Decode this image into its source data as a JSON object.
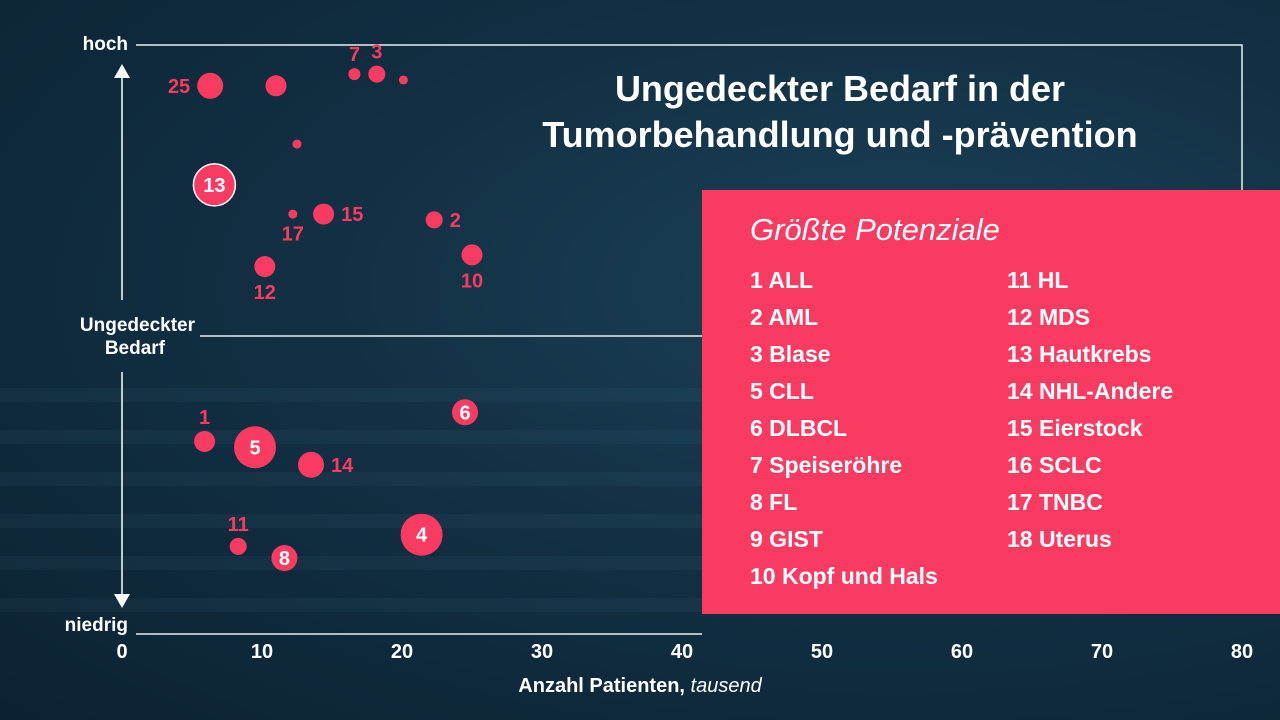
{
  "title_line1": "Ungedeckter Bedarf in der",
  "title_line2": "Tumorbehandlung und -prävention",
  "legend": {
    "title": "Größte Potenziale",
    "col1": [
      "1 ALL",
      "2 AML",
      "3 Blase",
      "5 CLL",
      "6 DLBCL",
      "7 Speiseröhre",
      "8 FL",
      "9 GIST",
      "10 Kopf und Hals"
    ],
    "col2": [
      "11 HL",
      "12 MDS",
      "13 Hautkrebs",
      "14 NHL-Andere",
      "15 Eierstock",
      "16 SCLC",
      "17 TNBC",
      "18 Uterus"
    ]
  },
  "axis": {
    "y_top": "hoch",
    "y_mid_line1": "Ungedeckter",
    "y_mid_line2": "Bedarf",
    "y_bottom": "niedrig",
    "x_label_bold": "Anzahl Patienten,",
    "x_label_italic": "tausend"
  },
  "colors": {
    "accent": "#fa3b61",
    "background": "#123044",
    "text": "#ffffff"
  },
  "chart_data": {
    "type": "scatter",
    "title": "Ungedeckter Bedarf in der Tumorbehandlung und -prävention",
    "xlabel": "Anzahl Patienten, tausend",
    "ylabel": "Ungedeckter Bedarf",
    "xlim": [
      0,
      80
    ],
    "xticks": [
      0,
      10,
      20,
      30,
      40,
      50,
      60,
      70,
      80
    ],
    "y_scale": "qualitative (niedrig to hoch, 0-100)",
    "ylim": [
      0,
      100
    ],
    "grid": false,
    "points": [
      {
        "label": "25",
        "x": 6.3,
        "y": 93,
        "size": "medium",
        "label_pos": "left"
      },
      {
        "label": "",
        "x": 11.0,
        "y": 93,
        "size": "medium-small",
        "label_pos": "none"
      },
      {
        "label": "7",
        "x": 16.6,
        "y": 95,
        "size": "small",
        "label_pos": "above"
      },
      {
        "label": "3",
        "x": 18.2,
        "y": 95,
        "size": "small-medium",
        "label_pos": "above"
      },
      {
        "label": "",
        "x": 20.1,
        "y": 94,
        "size": "tiny",
        "label_pos": "none"
      },
      {
        "label": "",
        "x": 12.5,
        "y": 83,
        "size": "tiny",
        "label_pos": "none"
      },
      {
        "label": "13",
        "x": 6.6,
        "y": 76,
        "size": "large",
        "label_pos": "inside"
      },
      {
        "label": "17",
        "x": 12.2,
        "y": 71,
        "size": "tiny",
        "label_pos": "below"
      },
      {
        "label": "15",
        "x": 14.4,
        "y": 71,
        "size": "medium-small",
        "label_pos": "right"
      },
      {
        "label": "2",
        "x": 22.3,
        "y": 70,
        "size": "small-medium",
        "label_pos": "right"
      },
      {
        "label": "10",
        "x": 25.0,
        "y": 64,
        "size": "medium-small",
        "label_pos": "below"
      },
      {
        "label": "12",
        "x": 10.2,
        "y": 62,
        "size": "medium-small",
        "label_pos": "below"
      },
      {
        "label": "6",
        "x": 24.5,
        "y": 37,
        "size": "medium",
        "label_pos": "inside"
      },
      {
        "label": "1",
        "x": 5.9,
        "y": 32,
        "size": "medium-small",
        "label_pos": "above"
      },
      {
        "label": "5",
        "x": 9.5,
        "y": 31,
        "size": "large",
        "label_pos": "inside"
      },
      {
        "label": "14",
        "x": 13.5,
        "y": 28,
        "size": "medium",
        "label_pos": "right"
      },
      {
        "label": "4",
        "x": 21.4,
        "y": 16,
        "size": "large",
        "label_pos": "inside"
      },
      {
        "label": "11",
        "x": 8.3,
        "y": 14,
        "size": "small-medium",
        "label_pos": "above"
      },
      {
        "label": "8",
        "x": 11.6,
        "y": 12,
        "size": "medium",
        "label_pos": "inside"
      }
    ]
  }
}
